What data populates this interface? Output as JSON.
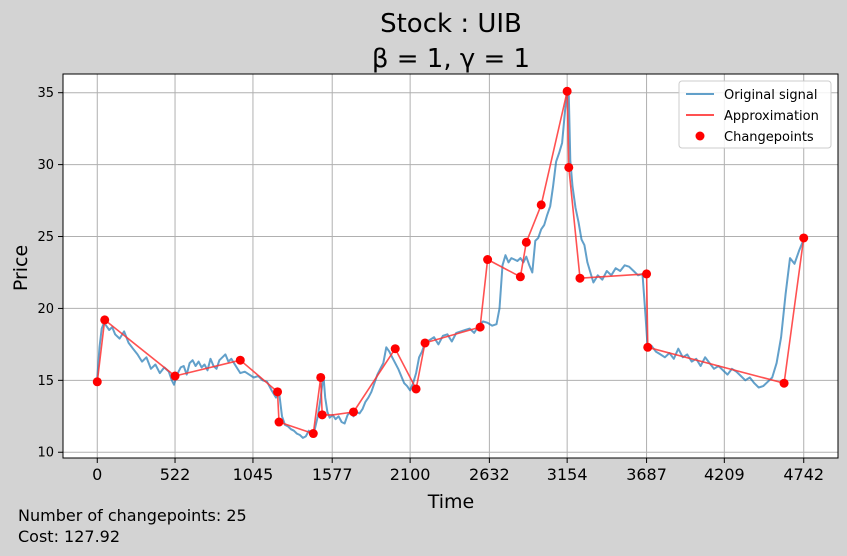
{
  "title_line1": "Stock : UIB",
  "title_line2": "β = 1, γ = 1",
  "footer": {
    "changepoints_text": "Number of changepoints: 25",
    "cost_text": "Cost: 127.92"
  },
  "chart_data": {
    "type": "line",
    "title": "Stock : UIB\nβ = 1, γ = 1",
    "xlabel": "Time",
    "ylabel": "Price",
    "xlim": [
      -230,
      4972
    ],
    "ylim": [
      9.6,
      36.3
    ],
    "xticks": [
      0,
      522,
      1045,
      1577,
      2100,
      2632,
      3154,
      3687,
      4209,
      4742
    ],
    "xtick_labels": [
      "0",
      "522",
      "1045",
      "1577",
      "2100",
      "2632",
      "3154",
      "3687",
      "4209",
      "4742"
    ],
    "yticks": [
      10,
      15,
      20,
      25,
      30,
      35
    ],
    "ytick_labels": [
      "10",
      "15",
      "20",
      "25",
      "30",
      "35"
    ],
    "grid": true,
    "legend_position": "top-right",
    "legend": [
      "Original signal",
      "Approximation",
      "Changepoints"
    ],
    "colors": {
      "signal": "#1f77b4",
      "approximation": "#ff3333",
      "changepoints": "#ff0000"
    },
    "series": [
      {
        "name": "Original signal",
        "x": [
          0,
          15,
          30,
          45,
          60,
          80,
          100,
          120,
          150,
          180,
          210,
          240,
          270,
          300,
          330,
          360,
          390,
          420,
          450,
          480,
          500,
          515,
          530,
          545,
          560,
          580,
          600,
          620,
          640,
          660,
          680,
          700,
          720,
          740,
          760,
          780,
          800,
          820,
          840,
          860,
          880,
          900,
          930,
          960,
          990,
          1020,
          1050,
          1080,
          1110,
          1140,
          1170,
          1200,
          1220,
          1240,
          1260,
          1280,
          1300,
          1320,
          1340,
          1360,
          1380,
          1400,
          1420,
          1440,
          1460,
          1480,
          1500,
          1510,
          1520,
          1530,
          1545,
          1560,
          1580,
          1600,
          1620,
          1640,
          1660,
          1680,
          1700,
          1720,
          1740,
          1760,
          1780,
          1800,
          1820,
          1840,
          1860,
          1880,
          1900,
          1920,
          1940,
          1960,
          1980,
          2000,
          2020,
          2040,
          2060,
          2080,
          2100,
          2120,
          2140,
          2160,
          2180,
          2200,
          2230,
          2260,
          2290,
          2320,
          2350,
          2380,
          2410,
          2440,
          2470,
          2500,
          2530,
          2560,
          2590,
          2620,
          2650,
          2680,
          2700,
          2720,
          2740,
          2760,
          2780,
          2800,
          2820,
          2840,
          2860,
          2880,
          2900,
          2920,
          2940,
          2960,
          2980,
          3000,
          3020,
          3040,
          3060,
          3080,
          3100,
          3120,
          3140,
          3154,
          3165,
          3175,
          3190,
          3210,
          3230,
          3250,
          3270,
          3290,
          3310,
          3330,
          3360,
          3390,
          3420,
          3450,
          3480,
          3510,
          3540,
          3570,
          3600,
          3630,
          3660,
          3680,
          3695,
          3720,
          3750,
          3780,
          3810,
          3840,
          3870,
          3900,
          3930,
          3960,
          3990,
          4020,
          4050,
          4080,
          4110,
          4140,
          4170,
          4200,
          4230,
          4260,
          4290,
          4320,
          4350,
          4380,
          4410,
          4440,
          4470,
          4500,
          4530,
          4560,
          4590,
          4620,
          4650,
          4680,
          4710,
          4742
        ],
        "y": [
          15.2,
          17.3,
          18.6,
          19.0,
          18.8,
          18.5,
          18.7,
          18.2,
          17.9,
          18.4,
          17.6,
          17.2,
          16.8,
          16.3,
          16.6,
          15.8,
          16.1,
          15.5,
          15.9,
          15.6,
          15.0,
          14.7,
          15.2,
          15.6,
          15.9,
          16.0,
          15.4,
          16.2,
          16.4,
          16.0,
          16.3,
          15.9,
          16.1,
          15.7,
          16.5,
          16.0,
          15.8,
          16.4,
          16.6,
          16.8,
          16.3,
          16.5,
          16.0,
          15.5,
          15.6,
          15.4,
          15.2,
          15.3,
          15.0,
          14.9,
          14.3,
          13.8,
          14.2,
          12.5,
          11.9,
          11.8,
          11.6,
          11.5,
          11.3,
          11.2,
          11.0,
          11.1,
          11.5,
          11.2,
          11.6,
          12.5,
          13.8,
          14.7,
          15.1,
          13.8,
          12.8,
          12.4,
          12.6,
          12.3,
          12.5,
          12.1,
          12.0,
          12.6,
          12.8,
          12.5,
          12.8,
          12.7,
          13.0,
          13.5,
          13.8,
          14.2,
          14.8,
          15.4,
          15.8,
          16.2,
          17.3,
          17.0,
          16.6,
          16.2,
          15.8,
          15.3,
          14.8,
          14.6,
          14.3,
          14.8,
          15.5,
          16.6,
          17.0,
          17.6,
          17.8,
          18.0,
          17.5,
          18.1,
          18.2,
          17.7,
          18.3,
          18.4,
          18.5,
          18.6,
          18.3,
          18.8,
          19.1,
          19.0,
          18.8,
          18.9,
          20.0,
          23.0,
          23.7,
          23.2,
          23.5,
          23.4,
          23.3,
          23.5,
          23.2,
          23.6,
          23.0,
          22.5,
          24.7,
          24.9,
          25.5,
          25.8,
          26.5,
          27.1,
          28.5,
          30.2,
          30.8,
          31.5,
          33.8,
          35.0,
          34.8,
          30.3,
          28.5,
          27.0,
          26.0,
          24.8,
          24.4,
          23.2,
          22.5,
          21.8,
          22.3,
          22.0,
          22.6,
          22.3,
          22.8,
          22.6,
          23.0,
          22.9,
          22.6,
          22.3,
          22.4,
          19.5,
          17.1,
          17.4,
          17.0,
          16.8,
          16.6,
          16.9,
          16.5,
          17.2,
          16.6,
          16.8,
          16.3,
          16.5,
          16.0,
          16.6,
          16.2,
          15.8,
          16.0,
          15.7,
          15.4,
          15.8,
          15.6,
          15.3,
          15.0,
          15.2,
          14.8,
          14.5,
          14.6,
          14.9,
          15.2,
          16.2,
          18.0,
          21.0,
          23.5,
          23.1,
          24.0,
          24.8
        ]
      },
      {
        "name": "Approximation",
        "x": [
          0,
          50,
          522,
          960,
          1210,
          1220,
          1450,
          1500,
          1510,
          1580,
          1720,
          2000,
          2140,
          2200,
          2570,
          2620,
          2840,
          2880,
          2980,
          3154,
          3165,
          3240,
          3687,
          3695,
          4610,
          4742
        ],
        "y": [
          14.9,
          19.2,
          15.3,
          16.4,
          14.2,
          12.1,
          11.3,
          15.2,
          12.6,
          12.6,
          12.8,
          17.2,
          14.4,
          17.6,
          18.7,
          23.4,
          22.2,
          24.6,
          27.2,
          35.1,
          29.8,
          22.1,
          22.4,
          17.3,
          14.8,
          24.9
        ]
      },
      {
        "name": "Changepoints",
        "x": [
          0,
          50,
          522,
          960,
          1210,
          1220,
          1450,
          1500,
          1510,
          1720,
          2000,
          2140,
          2200,
          2570,
          2620,
          2840,
          2880,
          2980,
          3154,
          3165,
          3240,
          3687,
          3695,
          4610,
          4742
        ],
        "y": [
          14.9,
          19.2,
          15.3,
          16.4,
          14.2,
          12.1,
          11.3,
          15.2,
          12.6,
          12.8,
          17.2,
          14.4,
          17.6,
          18.7,
          23.4,
          22.2,
          24.6,
          27.2,
          35.1,
          29.8,
          22.1,
          22.4,
          17.3,
          14.8,
          24.9
        ]
      }
    ]
  }
}
